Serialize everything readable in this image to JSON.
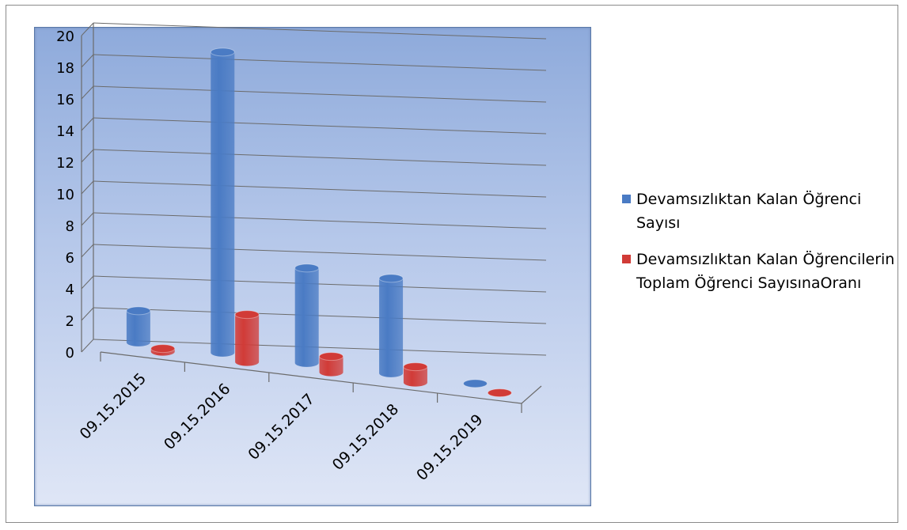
{
  "chart_data": {
    "type": "bar",
    "style": "3d-cylinder",
    "categories": [
      "09.15.2015",
      "09.15.2016",
      "09.15.2017",
      "09.15.2018",
      "09.15.2019"
    ],
    "series": [
      {
        "name": "Devamsızlıktan Kalan Öğrenci Sayısı",
        "color": "#4a7bc4",
        "values": [
          2,
          19,
          6,
          6,
          0
        ]
      },
      {
        "name": "Devamsızlıktan Kalan Öğrencilerin Toplam Öğrenci SayısınaOranı",
        "color": "#d13b37",
        "values": [
          0.2,
          3,
          1,
          1,
          0
        ]
      }
    ],
    "yticks": [
      "0",
      "2",
      "4",
      "6",
      "8",
      "10",
      "12",
      "14",
      "16",
      "18",
      "20"
    ],
    "ylim": [
      0,
      20
    ],
    "grid": true,
    "legend_position": "right"
  }
}
